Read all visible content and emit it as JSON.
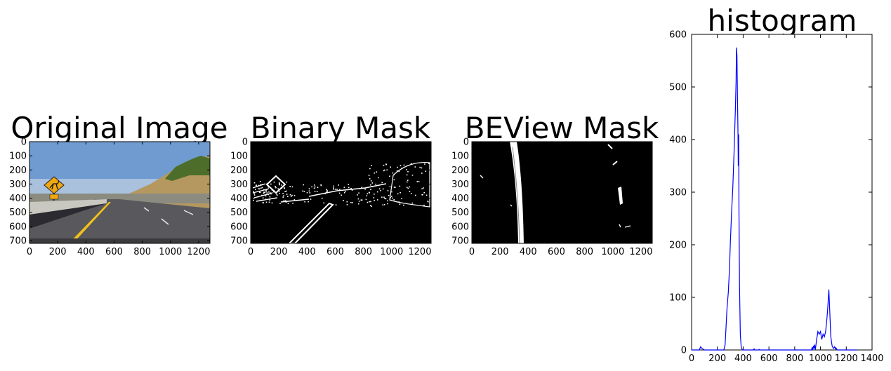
{
  "panels": [
    {
      "title": "Original Image",
      "x_ticks": [
        "0",
        "200",
        "400",
        "600",
        "800",
        "1000",
        "1200"
      ],
      "y_ticks": [
        "0",
        "100",
        "200",
        "300",
        "400",
        "500",
        "600",
        "700"
      ]
    },
    {
      "title": "Binary Mask",
      "x_ticks": [
        "0",
        "200",
        "400",
        "600",
        "800",
        "1000",
        "1200"
      ],
      "y_ticks": [
        "0",
        "100",
        "200",
        "300",
        "400",
        "500",
        "600",
        "700"
      ]
    },
    {
      "title": "BEView Mask",
      "x_ticks": [
        "0",
        "200",
        "400",
        "600",
        "800",
        "1000",
        "1200"
      ],
      "y_ticks": [
        "0",
        "100",
        "200",
        "300",
        "400",
        "500",
        "600",
        "700"
      ]
    }
  ],
  "colors": {
    "line": "#0000ff",
    "sky": "#6f9bd0",
    "road": "#59595d",
    "lane_yellow": "#f2c21a",
    "sign": "#f0a810",
    "hill": "#b49860"
  },
  "chart_data": {
    "type": "line",
    "title": "histogram",
    "xlabel": "",
    "ylabel": "",
    "xlim": [
      0,
      1400
    ],
    "ylim": [
      0,
      600
    ],
    "x_ticks": [
      0,
      200,
      400,
      600,
      800,
      1000,
      1200,
      1400
    ],
    "y_ticks": [
      0,
      100,
      200,
      300,
      400,
      500,
      600
    ],
    "series": [
      {
        "x": [
          0,
          60,
          70,
          80,
          100,
          250,
          260,
          275,
          285,
          295,
          300,
          310,
          320,
          330,
          340,
          345,
          348,
          352,
          356,
          360,
          362,
          365,
          368,
          372,
          378,
          385,
          395,
          420,
          480,
          485,
          490,
          520,
          525,
          530,
          900,
          930,
          935,
          940,
          945,
          950,
          955,
          960,
          970,
          980,
          990,
          1000,
          1010,
          1020,
          1030,
          1040,
          1050,
          1055,
          1060,
          1065,
          1070,
          1075,
          1080,
          1090,
          1100,
          1110,
          1115,
          1120,
          1130,
          1140,
          1280
        ],
        "y": [
          0,
          0,
          6,
          3,
          0,
          0,
          10,
          80,
          110,
          160,
          200,
          260,
          310,
          380,
          460,
          510,
          575,
          560,
          480,
          410,
          350,
          410,
          250,
          120,
          30,
          5,
          0,
          0,
          0,
          2,
          0,
          0,
          1,
          0,
          0,
          0,
          5,
          0,
          8,
          3,
          10,
          0,
          20,
          35,
          30,
          35,
          20,
          30,
          25,
          35,
          60,
          75,
          95,
          115,
          85,
          55,
          25,
          8,
          3,
          6,
          2,
          4,
          0,
          0,
          0
        ]
      }
    ]
  }
}
